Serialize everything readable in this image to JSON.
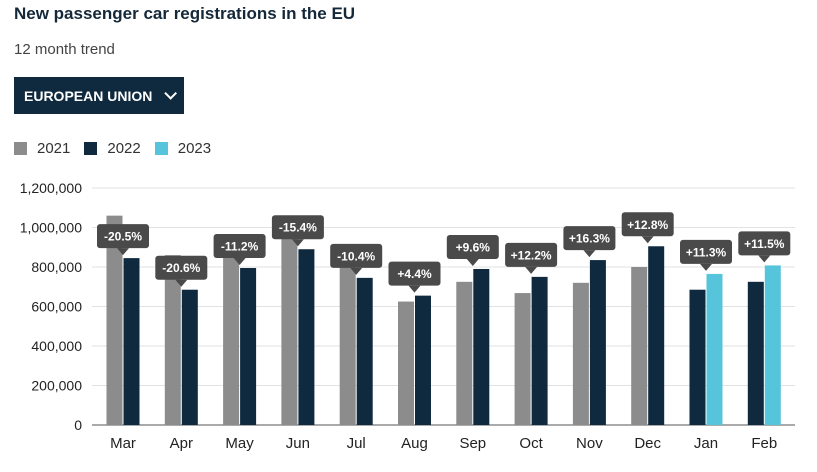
{
  "header": {
    "title": "New passenger car registrations in the EU",
    "subtitle": "12 month trend"
  },
  "region_selector": {
    "label": "EUROPEAN UNION"
  },
  "colors": {
    "2021": "#8c8c8c",
    "2022": "#0f2a3f",
    "2023": "#56c4da",
    "tooltip": "#4a4a4a",
    "grid": "#e2e2e2"
  },
  "chart_data": {
    "type": "bar",
    "title": "New passenger car registrations in the EU",
    "ylim": [
      0,
      1200000
    ],
    "yticks": [
      0,
      200000,
      400000,
      600000,
      800000,
      1000000,
      1200000
    ],
    "ytick_labels": [
      "0",
      "200,000",
      "400,000",
      "600,000",
      "800,000",
      "1,000,000",
      "1,200,000"
    ],
    "categories": [
      "Mar",
      "Apr",
      "May",
      "Jun",
      "Jul",
      "Aug",
      "Sep",
      "Oct",
      "Nov",
      "Dec",
      "Jan",
      "Feb"
    ],
    "legend": [
      "2021",
      "2022",
      "2023"
    ],
    "series": [
      {
        "name": "2021",
        "values": [
          1060000,
          860000,
          890000,
          1050000,
          830000,
          625000,
          725000,
          668000,
          720000,
          800000,
          null,
          null
        ]
      },
      {
        "name": "2022",
        "values": [
          845000,
          685000,
          795000,
          890000,
          745000,
          655000,
          790000,
          750000,
          835000,
          905000,
          685000,
          725000
        ]
      },
      {
        "name": "2023",
        "values": [
          null,
          null,
          null,
          null,
          null,
          null,
          null,
          null,
          null,
          null,
          765000,
          808000
        ]
      }
    ],
    "change_labels": [
      "-20.5%",
      "-20.6%",
      "-11.2%",
      "-15.4%",
      "-10.4%",
      "+4.4%",
      "+9.6%",
      "+12.2%",
      "+16.3%",
      "+12.8%",
      "+11.3%",
      "+11.5%"
    ]
  }
}
